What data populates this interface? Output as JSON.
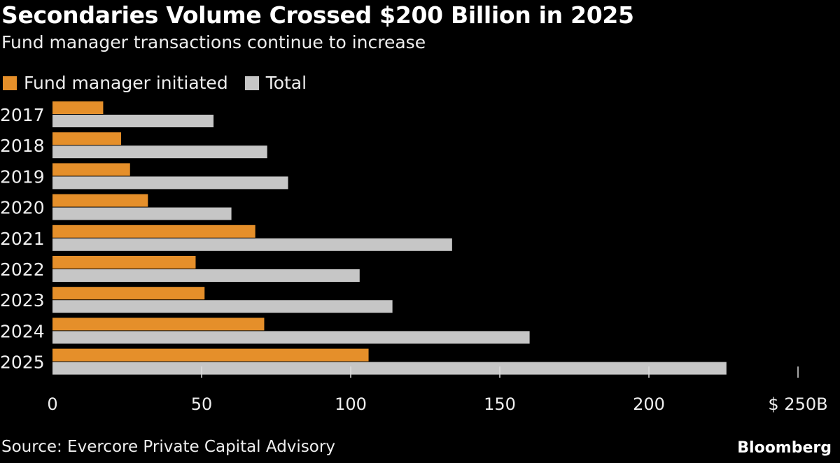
{
  "chart_data": {
    "type": "bar",
    "orientation": "horizontal",
    "title": "Secondaries Volume Crossed $200 Billion in 2025",
    "subtitle": "Fund manager transactions continue to increase",
    "categories": [
      "2017",
      "2018",
      "2019",
      "2020",
      "2021",
      "2022",
      "2023",
      "2024",
      "2025"
    ],
    "series": [
      {
        "name": "Fund manager initiated",
        "color": "#e58f2a",
        "values": [
          17,
          23,
          26,
          32,
          68,
          48,
          51,
          71,
          106
        ]
      },
      {
        "name": "Total",
        "color": "#c6c6c6",
        "values": [
          54,
          72,
          79,
          60,
          134,
          103,
          114,
          160,
          226
        ]
      }
    ],
    "xlim": [
      0,
      250
    ],
    "xticks": [
      0,
      50,
      100,
      150,
      200,
      250
    ],
    "xtick_labels": [
      "0",
      "50",
      "100",
      "150",
      "200",
      "$ 250B"
    ],
    "grid": false,
    "legend": "top-left",
    "source": "Source: Evercore Private Capital Advisory",
    "brand": "Bloomberg"
  }
}
